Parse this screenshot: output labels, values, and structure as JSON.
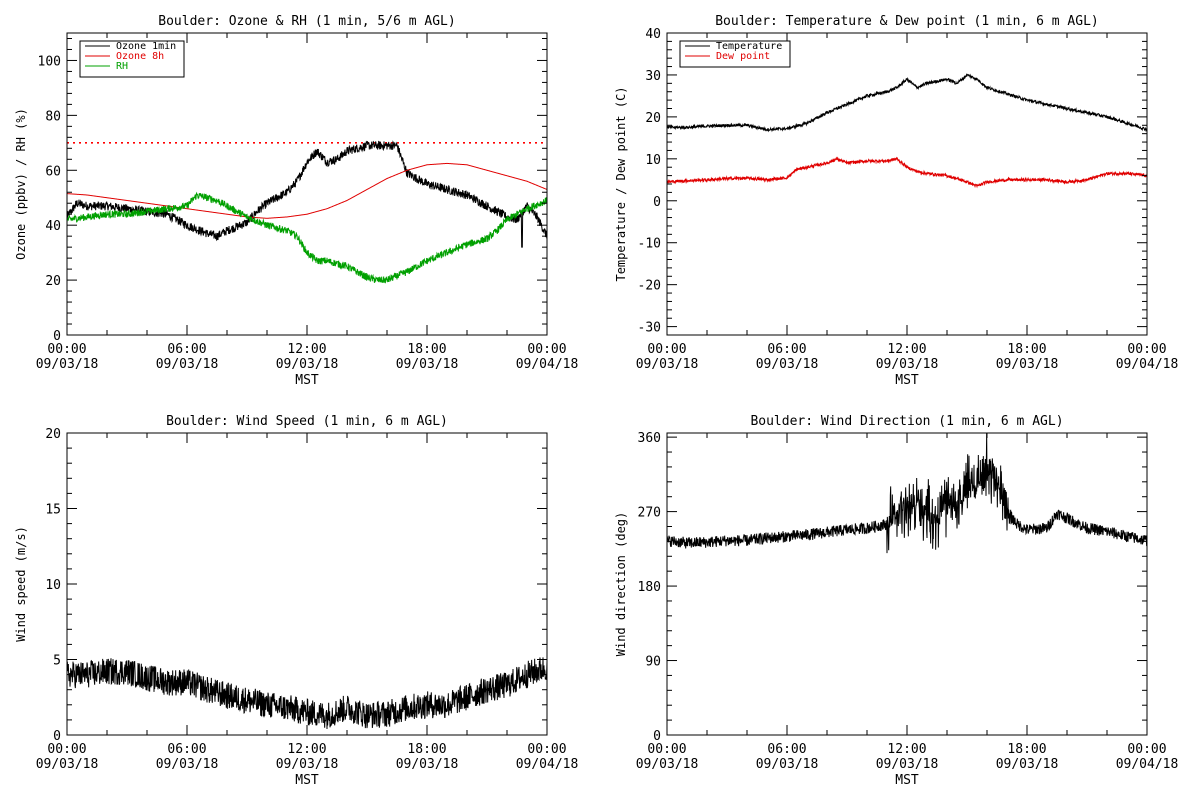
{
  "chart_data": [
    {
      "id": "ozone_rh",
      "type": "line",
      "title": "Boulder: Ozone & RH (1 min, 5/6 m AGL)",
      "xlabel": "MST",
      "ylabel": "Ozone (ppbv) / RH (%)",
      "ylim": [
        0,
        110
      ],
      "yticks": [
        0,
        20,
        40,
        60,
        80,
        100
      ],
      "xticks": [
        {
          "time": "00:00",
          "date": "09/03/18"
        },
        {
          "time": "06:00",
          "date": "09/03/18"
        },
        {
          "time": "12:00",
          "date": "09/03/18"
        },
        {
          "time": "18:00",
          "date": "09/03/18"
        },
        {
          "time": "00:00",
          "date": "09/04/18"
        }
      ],
      "xlim_hours": [
        0,
        24
      ],
      "legend_position": "top-left",
      "reference_line": {
        "y": 70,
        "color": "#ff0000",
        "style": "dotted"
      },
      "series": [
        {
          "name": "Ozone 1min",
          "color": "#000000",
          "noise": 1.6,
          "spikes": [
            [
              22.75,
              32
            ]
          ],
          "points": [
            [
              0,
              43
            ],
            [
              0.5,
              48
            ],
            [
              1,
              47
            ],
            [
              2,
              47
            ],
            [
              3,
              46
            ],
            [
              4,
              45
            ],
            [
              5,
              44
            ],
            [
              5.5,
              42
            ],
            [
              6,
              40
            ],
            [
              7,
              37
            ],
            [
              7.5,
              36
            ],
            [
              8,
              38
            ],
            [
              9,
              41
            ],
            [
              9.5,
              45
            ],
            [
              10,
              48
            ],
            [
              11,
              52
            ],
            [
              11.5,
              56
            ],
            [
              12,
              63
            ],
            [
              12.5,
              67
            ],
            [
              13,
              63
            ],
            [
              13.5,
              64
            ],
            [
              14,
              67
            ],
            [
              15,
              69
            ],
            [
              16,
              69
            ],
            [
              16.5,
              69
            ],
            [
              17,
              59
            ],
            [
              17.5,
              57
            ],
            [
              18,
              55
            ],
            [
              18.5,
              54
            ],
            [
              19,
              53
            ],
            [
              20,
              51
            ],
            [
              21,
              47
            ],
            [
              22,
              43
            ],
            [
              22.5,
              42
            ],
            [
              23,
              47
            ],
            [
              23.5,
              43
            ],
            [
              24,
              36
            ]
          ]
        },
        {
          "name": "Ozone 8h",
          "color": "#e00000",
          "noise": 0,
          "spikes": [],
          "points": [
            [
              0,
              51.5
            ],
            [
              1,
              51
            ],
            [
              2,
              50
            ],
            [
              3,
              49
            ],
            [
              4,
              48
            ],
            [
              5,
              47
            ],
            [
              6,
              46
            ],
            [
              7,
              45
            ],
            [
              8,
              44
            ],
            [
              9,
              43
            ],
            [
              10,
              42.5
            ],
            [
              11,
              43
            ],
            [
              12,
              44
            ],
            [
              13,
              46
            ],
            [
              14,
              49
            ],
            [
              15,
              53
            ],
            [
              16,
              57
            ],
            [
              17,
              60
            ],
            [
              18,
              62
            ],
            [
              19,
              62.5
            ],
            [
              20,
              62
            ],
            [
              21,
              60
            ],
            [
              22,
              58
            ],
            [
              23,
              56
            ],
            [
              24,
              53
            ]
          ]
        },
        {
          "name": "RH",
          "color": "#00a000",
          "noise": 1.3,
          "spikes": [],
          "points": [
            [
              0,
              42
            ],
            [
              1,
              43
            ],
            [
              2,
              44
            ],
            [
              3,
              44
            ],
            [
              4,
              45
            ],
            [
              5,
              46
            ],
            [
              6,
              47
            ],
            [
              6.5,
              51
            ],
            [
              7,
              50
            ],
            [
              7.5,
              49
            ],
            [
              8,
              47
            ],
            [
              8.5,
              45
            ],
            [
              9,
              43
            ],
            [
              10,
              40
            ],
            [
              11,
              38
            ],
            [
              11.5,
              36
            ],
            [
              12,
              30
            ],
            [
              12.5,
              27
            ],
            [
              13,
              27
            ],
            [
              14,
              25
            ],
            [
              15,
              21
            ],
            [
              15.5,
              20
            ],
            [
              16,
              20
            ],
            [
              17,
              23
            ],
            [
              18,
              27
            ],
            [
              19,
              30
            ],
            [
              20,
              33
            ],
            [
              21,
              35
            ],
            [
              21.5,
              38
            ],
            [
              22,
              42
            ],
            [
              23,
              46
            ],
            [
              24,
              49
            ]
          ]
        }
      ]
    },
    {
      "id": "temp_dew",
      "type": "line",
      "title": "Boulder: Temperature & Dew point (1 min, 6 m AGL)",
      "xlabel": "MST",
      "ylabel": "Temperature / Dew point (C)",
      "ylim": [
        -32,
        40
      ],
      "yticks": [
        -30,
        -20,
        -10,
        0,
        10,
        20,
        30,
        40
      ],
      "xticks": [
        {
          "time": "00:00",
          "date": "09/03/18"
        },
        {
          "time": "06:00",
          "date": "09/03/18"
        },
        {
          "time": "12:00",
          "date": "09/03/18"
        },
        {
          "time": "18:00",
          "date": "09/03/18"
        },
        {
          "time": "00:00",
          "date": "09/04/18"
        }
      ],
      "xlim_hours": [
        0,
        24
      ],
      "legend_position": "top-left",
      "series": [
        {
          "name": "Temperature",
          "color": "#000000",
          "noise": 0.35,
          "spikes": [],
          "points": [
            [
              0,
              17.5
            ],
            [
              1,
              17.5
            ],
            [
              2,
              17.8
            ],
            [
              3,
              18
            ],
            [
              4,
              18
            ],
            [
              5,
              17
            ],
            [
              6,
              17.2
            ],
            [
              7,
              18.5
            ],
            [
              8,
              21
            ],
            [
              9,
              23
            ],
            [
              10,
              25
            ],
            [
              11,
              26
            ],
            [
              11.5,
              27
            ],
            [
              12,
              29
            ],
            [
              12.5,
              27
            ],
            [
              13,
              28
            ],
            [
              14,
              29
            ],
            [
              14.5,
              28
            ],
            [
              15,
              30
            ],
            [
              15.5,
              29
            ],
            [
              16,
              27
            ],
            [
              17,
              25.5
            ],
            [
              18,
              24
            ],
            [
              19,
              23
            ],
            [
              20,
              22
            ],
            [
              21,
              21
            ],
            [
              22,
              20
            ],
            [
              23,
              18.5
            ],
            [
              24,
              17
            ]
          ]
        },
        {
          "name": "Dew point",
          "color": "#e00000",
          "noise": 0.35,
          "spikes": [],
          "points": [
            [
              0,
              4.5
            ],
            [
              1,
              4.8
            ],
            [
              2,
              5
            ],
            [
              3,
              5.3
            ],
            [
              4,
              5.4
            ],
            [
              5,
              5
            ],
            [
              6,
              5.5
            ],
            [
              6.5,
              7.5
            ],
            [
              7,
              8
            ],
            [
              8,
              9
            ],
            [
              8.5,
              10
            ],
            [
              9,
              9
            ],
            [
              10,
              9.5
            ],
            [
              11,
              9.5
            ],
            [
              11.5,
              10
            ],
            [
              12,
              8
            ],
            [
              12.5,
              7
            ],
            [
              13,
              6.5
            ],
            [
              14,
              6
            ],
            [
              15,
              4.5
            ],
            [
              15.5,
              3.5
            ],
            [
              16,
              4.5
            ],
            [
              17,
              5
            ],
            [
              18,
              5
            ],
            [
              19,
              5
            ],
            [
              20,
              4.5
            ],
            [
              21,
              5
            ],
            [
              22,
              6.5
            ],
            [
              23,
              6.5
            ],
            [
              24,
              6
            ]
          ]
        }
      ]
    },
    {
      "id": "wind_speed",
      "type": "line",
      "title": "Boulder: Wind Speed (1 min, 6 m AGL)",
      "xlabel": "MST",
      "ylabel": "Wind speed (m/s)",
      "ylim": [
        0,
        20
      ],
      "yticks": [
        0,
        5,
        10,
        15,
        20
      ],
      "xticks": [
        {
          "time": "00:00",
          "date": "09/03/18"
        },
        {
          "time": "06:00",
          "date": "09/03/18"
        },
        {
          "time": "12:00",
          "date": "09/03/18"
        },
        {
          "time": "18:00",
          "date": "09/03/18"
        },
        {
          "time": "00:00",
          "date": "09/04/18"
        }
      ],
      "xlim_hours": [
        0,
        24
      ],
      "series": [
        {
          "name": "",
          "color": "#000000",
          "noise": 0.9,
          "spikes": [],
          "points": [
            [
              0,
              4
            ],
            [
              1,
              4
            ],
            [
              2,
              4.2
            ],
            [
              3,
              4.2
            ],
            [
              4,
              3.8
            ],
            [
              5,
              3.5
            ],
            [
              6,
              3.5
            ],
            [
              7,
              3
            ],
            [
              8,
              2.6
            ],
            [
              9,
              2.3
            ],
            [
              10,
              2
            ],
            [
              11,
              1.8
            ],
            [
              12,
              1.5
            ],
            [
              13,
              1.3
            ],
            [
              14,
              1.8
            ],
            [
              15,
              1.3
            ],
            [
              16,
              1.4
            ],
            [
              17,
              1.8
            ],
            [
              18,
              2
            ],
            [
              19,
              2
            ],
            [
              20,
              2.5
            ],
            [
              21,
              3
            ],
            [
              22,
              3.3
            ],
            [
              23,
              4
            ],
            [
              24,
              4.5
            ]
          ]
        }
      ]
    },
    {
      "id": "wind_dir",
      "type": "line",
      "title": "Boulder: Wind Direction (1 min, 6 m AGL)",
      "xlabel": "MST",
      "ylabel": "Wind direction (deg)",
      "ylim": [
        0,
        365
      ],
      "yticks": [
        0,
        90,
        180,
        270,
        360
      ],
      "xticks": [
        {
          "time": "00:00",
          "date": "09/03/18"
        },
        {
          "time": "06:00",
          "date": "09/03/18"
        },
        {
          "time": "12:00",
          "date": "09/03/18"
        },
        {
          "time": "18:00",
          "date": "09/03/18"
        },
        {
          "time": "00:00",
          "date": "09/04/18"
        }
      ],
      "xlim_hours": [
        0,
        24
      ],
      "series": [
        {
          "name": "",
          "color": "#000000",
          "noise": 7,
          "spikes": [],
          "points": [
            [
              0,
              235
            ],
            [
              1,
              232
            ],
            [
              2,
              233
            ],
            [
              3,
              235
            ],
            [
              4,
              235
            ],
            [
              5,
              238
            ],
            [
              6,
              240
            ],
            [
              7,
              242
            ],
            [
              8,
              245
            ],
            [
              9,
              248
            ],
            [
              10,
              250
            ],
            [
              11,
              255
            ],
            [
              11.5,
              265
            ],
            [
              12,
              275
            ],
            [
              12.5,
              280
            ],
            [
              13,
              265
            ],
            [
              13.5,
              260
            ],
            [
              14,
              290
            ],
            [
              14.5,
              275
            ],
            [
              15,
              300
            ],
            [
              15.5,
              310
            ],
            [
              16,
              320
            ],
            [
              16.5,
              310
            ],
            [
              17,
              270
            ],
            [
              17.5,
              255
            ],
            [
              18,
              248
            ],
            [
              19,
              250
            ],
            [
              19.5,
              268
            ],
            [
              20,
              262
            ],
            [
              21,
              250
            ],
            [
              22,
              246
            ],
            [
              23,
              240
            ],
            [
              24,
              235
            ]
          ],
          "burst": {
            "range_hours": [
              11.0,
              17.2
            ],
            "amplitude": 45
          }
        }
      ]
    }
  ]
}
